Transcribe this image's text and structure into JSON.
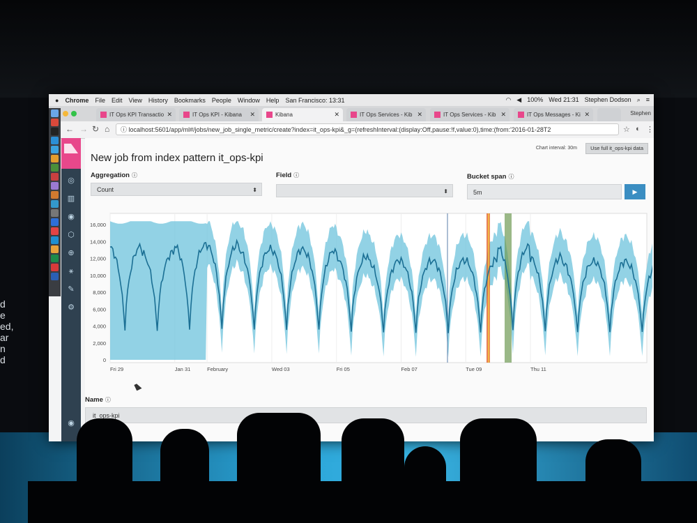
{
  "side_text": [
    "d",
    "e",
    "ed,",
    "ar",
    "n",
    "d"
  ],
  "menubar": {
    "app": "Chrome",
    "items": [
      "File",
      "Edit",
      "View",
      "History",
      "Bookmarks",
      "People",
      "Window",
      "Help"
    ],
    "location": "San Francisco: 13:31",
    "battery": "100%",
    "clock": "Wed 21:31",
    "user": "Stephen Dodson"
  },
  "tabs": [
    {
      "label": "IT Ops KPI Transactio"
    },
    {
      "label": "IT Ops KPI - Kibana"
    },
    {
      "label": "Kibana"
    },
    {
      "label": "IT Ops Services - Kib"
    },
    {
      "label": "IT Ops Services - Kib"
    },
    {
      "label": "IT Ops Messages - Ki"
    }
  ],
  "profile_name": "Stephen",
  "address": "localhost:5601/app/ml#/jobs/new_job_single_metric/create?index=it_ops-kpi&_g=(refreshInterval:(display:Off,pause:!f,value:0),time:(from:'2016-01-28T2",
  "page": {
    "title": "New job from index pattern it_ops-kpi",
    "chart_interval": "Chart interval: 30m",
    "use_full_label": "Use full it_ops-kpi data",
    "aggregation_label": "Aggregation",
    "aggregation_value": "Count",
    "field_label": "Field",
    "field_value": "",
    "bucket_span_label": "Bucket span",
    "bucket_span_value": "5m",
    "name_label": "Name",
    "name_value": "it_ops-kpi"
  },
  "colors": {
    "kibana_pink": "#e8488b",
    "sidebar": "#2f4150",
    "line": "#1b7ea3",
    "band": "#6ec3dc",
    "play": "#3b8ec2"
  },
  "chart_data": {
    "type": "line",
    "y_ticks": [
      "16,000",
      "14,000",
      "12,000",
      "10,000",
      "8,000",
      "6,000",
      "4,000",
      "2,000",
      "0"
    ],
    "ylim": [
      0,
      16500
    ],
    "x_ticks": [
      {
        "label": "Fri 29",
        "day": 0
      },
      {
        "label": "Jan 31",
        "day": 2
      },
      {
        "label": "February",
        "day": 3
      },
      {
        "label": "Wed 03",
        "day": 5
      },
      {
        "label": "Fri 05",
        "day": 7
      },
      {
        "label": "Feb 07",
        "day": 9
      },
      {
        "label": "Tue 09",
        "day": 11
      },
      {
        "label": "Thu 11",
        "day": 13
      }
    ],
    "series": [
      {
        "values": [
          13400,
          12700,
          13600,
          13700,
          13100,
          13100,
          13000,
          12300,
          11800,
          11700,
          11800,
          11800,
          13400,
          12200,
          11600,
          11700,
          11500
        ]
      }
    ]
  }
}
